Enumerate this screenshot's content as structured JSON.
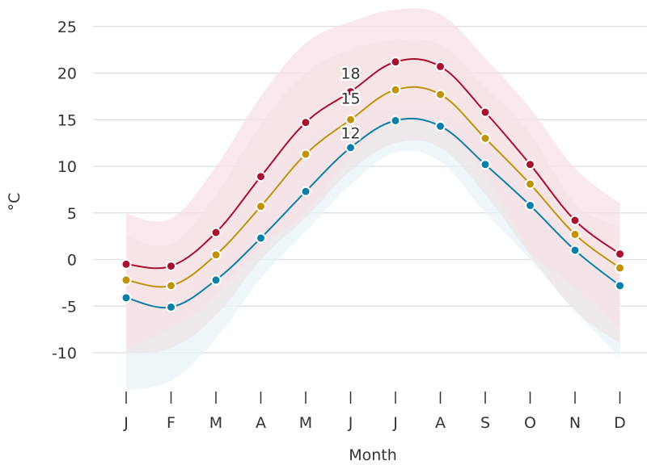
{
  "chart_data": {
    "type": "line",
    "title": "",
    "xlabel": "Month",
    "ylabel": "°C",
    "categories": [
      "J",
      "F",
      "M",
      "A",
      "M",
      "J",
      "J",
      "A",
      "S",
      "O",
      "N",
      "D"
    ],
    "yticks": [
      25,
      20,
      15,
      10,
      5,
      0,
      -5,
      -10
    ],
    "ylim": [
      -14.5,
      27.5
    ],
    "grid": "horizontal",
    "legend": "none",
    "series": [
      {
        "color": "#a8102f",
        "values": [
          -0.5,
          -0.7,
          2.9,
          8.9,
          14.7,
          18.0,
          21.2,
          20.7,
          15.8,
          10.2,
          4.2,
          0.6
        ],
        "range_upper": [
          4.9,
          4.4,
          10.0,
          17.5,
          23.2,
          25.5,
          26.8,
          26.3,
          21.6,
          16.2,
          9.8,
          6.0
        ],
        "range_lower": [
          -9.5,
          -7.3,
          -4.0,
          1.5,
          5.0,
          11.0,
          15.0,
          14.0,
          9.0,
          1.0,
          -3.0,
          -7.5
        ],
        "range_fill": "#f7e1e6"
      },
      {
        "color": "#bf940a",
        "values": [
          -2.2,
          -2.8,
          0.5,
          5.7,
          11.3,
          15.0,
          18.2,
          17.7,
          13.0,
          8.1,
          2.7,
          -0.9
        ],
        "range_upper": [
          2.5,
          1.7,
          7.0,
          14.5,
          20.0,
          22.5,
          23.5,
          23.0,
          18.5,
          13.5,
          6.0,
          3.5
        ],
        "range_lower": [
          -10.0,
          -9.5,
          -6.0,
          0.0,
          4.5,
          9.5,
          12.5,
          12.0,
          7.0,
          0.5,
          -5.5,
          -9.0
        ],
        "range_fill": "#ede4e6"
      },
      {
        "color": "#0c7fa8",
        "values": [
          -4.1,
          -5.1,
          -2.2,
          2.3,
          7.3,
          12.0,
          14.9,
          14.3,
          10.2,
          5.8,
          1.0,
          -2.8
        ],
        "range_upper": [
          -4.0,
          -5.0,
          1.5,
          8.0,
          13.0,
          15.5,
          16.5,
          16.0,
          13.0,
          9.0,
          3.5,
          -1.0
        ],
        "range_lower": [
          -14.0,
          -13.0,
          -8.5,
          -2.0,
          3.0,
          8.0,
          11.5,
          10.5,
          5.0,
          0.0,
          -5.5,
          -10.5
        ],
        "range_fill": "#e8f3f8"
      }
    ],
    "annotations": [
      {
        "label": "18",
        "x_index": 5,
        "y": 20.0
      },
      {
        "label": "15",
        "x_index": 5,
        "y": 17.3
      },
      {
        "label": "12",
        "x_index": 5,
        "y": 13.6
      }
    ]
  }
}
